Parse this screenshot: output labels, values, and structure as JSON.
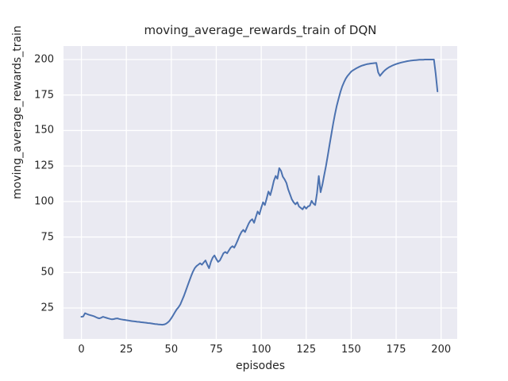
{
  "colors": {
    "figure_bg": "#ffffff",
    "axes_bg": "#eaeaf2",
    "grid": "#ffffff",
    "text": "#262626",
    "line": "#4c72b0"
  },
  "chart_data": {
    "type": "line",
    "title": "moving_average_rewards_train of DQN",
    "xlabel": "episodes",
    "ylabel": "moving_average_rewards_train",
    "xlim": [
      -9.95,
      208.95
    ],
    "ylim": [
      3.2,
      209.5
    ],
    "xticks": [
      0,
      25,
      50,
      75,
      100,
      125,
      150,
      175,
      200
    ],
    "yticks": [
      25,
      50,
      75,
      100,
      125,
      150,
      175,
      200
    ],
    "grid": true,
    "legend_position": "none",
    "series": [
      {
        "name": "moving_average_rewards_train",
        "color": "#4c72b0",
        "points": [
          [
            0,
            18.8
          ],
          [
            1,
            19.0
          ],
          [
            2,
            21.3
          ],
          [
            3,
            20.8
          ],
          [
            4,
            20.3
          ],
          [
            5,
            19.9
          ],
          [
            6,
            19.6
          ],
          [
            7,
            19.2
          ],
          [
            8,
            18.6
          ],
          [
            9,
            18.0
          ],
          [
            10,
            17.7
          ],
          [
            11,
            18.1
          ],
          [
            12,
            18.8
          ],
          [
            13,
            18.4
          ],
          [
            14,
            18.0
          ],
          [
            15,
            17.6
          ],
          [
            16,
            17.3
          ],
          [
            17,
            17.0
          ],
          [
            18,
            17.2
          ],
          [
            19,
            17.5
          ],
          [
            20,
            17.7
          ],
          [
            21,
            17.3
          ],
          [
            22,
            17.0
          ],
          [
            23,
            16.8
          ],
          [
            24,
            16.6
          ],
          [
            25,
            16.4
          ],
          [
            26,
            16.2
          ],
          [
            27,
            16.0
          ],
          [
            28,
            15.8
          ],
          [
            29,
            15.6
          ],
          [
            30,
            15.5
          ],
          [
            31,
            15.3
          ],
          [
            32,
            15.2
          ],
          [
            33,
            15.0
          ],
          [
            34,
            14.9
          ],
          [
            35,
            14.7
          ],
          [
            36,
            14.6
          ],
          [
            37,
            14.4
          ],
          [
            38,
            14.3
          ],
          [
            39,
            14.1
          ],
          [
            40,
            13.9
          ],
          [
            41,
            13.7
          ],
          [
            42,
            13.6
          ],
          [
            43,
            13.4
          ],
          [
            44,
            13.3
          ],
          [
            45,
            13.2
          ],
          [
            46,
            13.4
          ],
          [
            47,
            13.9
          ],
          [
            48,
            14.8
          ],
          [
            49,
            16.0
          ],
          [
            50,
            17.8
          ],
          [
            51,
            19.8
          ],
          [
            52,
            22.0
          ],
          [
            53,
            24.0
          ],
          [
            54,
            25.5
          ],
          [
            55,
            27.5
          ],
          [
            56,
            30.5
          ],
          [
            57,
            33.5
          ],
          [
            58,
            37.0
          ],
          [
            59,
            40.5
          ],
          [
            60,
            44.0
          ],
          [
            61,
            47.5
          ],
          [
            62,
            50.5
          ],
          [
            63,
            53.0
          ],
          [
            64,
            54.5
          ],
          [
            65,
            55.5
          ],
          [
            66,
            56.5
          ],
          [
            67,
            55.5
          ],
          [
            68,
            57.0
          ],
          [
            69,
            58.5
          ],
          [
            70,
            55.5
          ],
          [
            71,
            53.0
          ],
          [
            72,
            57.5
          ],
          [
            73,
            60.5
          ],
          [
            74,
            62.0
          ],
          [
            75,
            59.5
          ],
          [
            76,
            57.5
          ],
          [
            77,
            58.5
          ],
          [
            78,
            61.0
          ],
          [
            79,
            63.5
          ],
          [
            80,
            64.5
          ],
          [
            81,
            63.5
          ],
          [
            82,
            65.5
          ],
          [
            83,
            67.5
          ],
          [
            84,
            68.5
          ],
          [
            85,
            67.5
          ],
          [
            86,
            70.0
          ],
          [
            87,
            73.0
          ],
          [
            88,
            76.0
          ],
          [
            89,
            78.5
          ],
          [
            90,
            80.0
          ],
          [
            91,
            78.5
          ],
          [
            92,
            81.5
          ],
          [
            93,
            84.5
          ],
          [
            94,
            86.5
          ],
          [
            95,
            87.5
          ],
          [
            96,
            85.0
          ],
          [
            97,
            89.0
          ],
          [
            98,
            93.0
          ],
          [
            99,
            91.0
          ],
          [
            100,
            95.5
          ],
          [
            101,
            99.5
          ],
          [
            102,
            97.5
          ],
          [
            103,
            102.0
          ],
          [
            104,
            107.0
          ],
          [
            105,
            104.5
          ],
          [
            106,
            109.0
          ],
          [
            107,
            114.5
          ],
          [
            108,
            118.0
          ],
          [
            109,
            116.0
          ],
          [
            110,
            123.5
          ],
          [
            111,
            121.5
          ],
          [
            112,
            117.5
          ],
          [
            113,
            115.5
          ],
          [
            114,
            113.0
          ],
          [
            115,
            108.5
          ],
          [
            116,
            105.0
          ],
          [
            117,
            101.5
          ],
          [
            118,
            99.5
          ],
          [
            119,
            98.0
          ],
          [
            120,
            99.5
          ],
          [
            121,
            96.5
          ],
          [
            122,
            95.5
          ],
          [
            123,
            94.5
          ],
          [
            124,
            96.5
          ],
          [
            125,
            95.0
          ],
          [
            126,
            96.5
          ],
          [
            127,
            97.0
          ],
          [
            128,
            100.5
          ],
          [
            129,
            98.5
          ],
          [
            130,
            97.5
          ],
          [
            131,
            106.0
          ],
          [
            132,
            118.0
          ],
          [
            133,
            106.5
          ],
          [
            134,
            112.0
          ],
          [
            135,
            118.5
          ],
          [
            136,
            125.0
          ],
          [
            137,
            132.5
          ],
          [
            138,
            140.0
          ],
          [
            139,
            147.5
          ],
          [
            140,
            155.0
          ],
          [
            141,
            161.5
          ],
          [
            142,
            167.5
          ],
          [
            143,
            172.5
          ],
          [
            144,
            177.0
          ],
          [
            145,
            181.0
          ],
          [
            146,
            184.0
          ],
          [
            147,
            186.5
          ],
          [
            148,
            188.5
          ],
          [
            149,
            190.0
          ],
          [
            150,
            191.5
          ],
          [
            151,
            192.4
          ],
          [
            152,
            193.2
          ],
          [
            153,
            193.9
          ],
          [
            154,
            194.6
          ],
          [
            155,
            195.2
          ],
          [
            156,
            195.7
          ],
          [
            157,
            196.1
          ],
          [
            158,
            196.5
          ],
          [
            159,
            196.8
          ],
          [
            160,
            197.0
          ],
          [
            161,
            197.2
          ],
          [
            162,
            197.3
          ],
          [
            163,
            197.5
          ],
          [
            164,
            197.6
          ],
          [
            165,
            191.0
          ],
          [
            166,
            188.5
          ],
          [
            167,
            190.0
          ],
          [
            168,
            191.5
          ],
          [
            169,
            192.7
          ],
          [
            170,
            193.7
          ],
          [
            171,
            194.5
          ],
          [
            172,
            195.2
          ],
          [
            173,
            195.8
          ],
          [
            174,
            196.3
          ],
          [
            175,
            196.8
          ],
          [
            176,
            197.2
          ],
          [
            177,
            197.6
          ],
          [
            178,
            197.9
          ],
          [
            179,
            198.2
          ],
          [
            180,
            198.5
          ],
          [
            181,
            198.8
          ],
          [
            182,
            199.0
          ],
          [
            183,
            199.2
          ],
          [
            184,
            199.4
          ],
          [
            185,
            199.5
          ],
          [
            186,
            199.6
          ],
          [
            187,
            199.7
          ],
          [
            188,
            199.8
          ],
          [
            189,
            199.9
          ],
          [
            190,
            199.9
          ],
          [
            191,
            200.0
          ],
          [
            192,
            200.0
          ],
          [
            193,
            200.0
          ],
          [
            194,
            200.0
          ],
          [
            195,
            200.0
          ],
          [
            196,
            200.0
          ],
          [
            197,
            190.0
          ],
          [
            198,
            177.5
          ]
        ]
      }
    ]
  }
}
